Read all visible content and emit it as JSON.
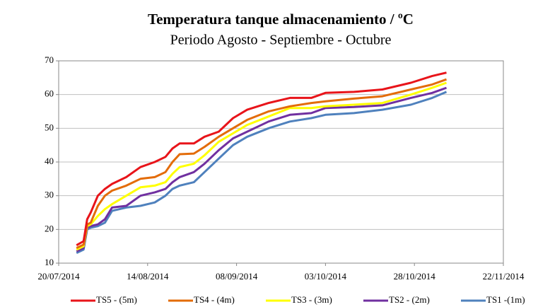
{
  "chart_data": {
    "type": "line",
    "title": "Temperatura tanque almacenamiento / ºC",
    "subtitle": "Periodo Agosto - Septiembre - Octubre",
    "x": [
      "25/07/2014",
      "27/07/2014",
      "28/07/2014",
      "29/07/2014",
      "31/07/2014",
      "02/08/2014",
      "04/08/2014",
      "08/08/2014",
      "12/08/2014",
      "16/08/2014",
      "19/08/2014",
      "21/08/2014",
      "23/08/2014",
      "27/08/2014",
      "30/08/2014",
      "03/09/2014",
      "07/09/2014",
      "11/09/2014",
      "17/09/2014",
      "23/09/2014",
      "29/09/2014",
      "03/10/2014",
      "11/10/2014",
      "19/10/2014",
      "27/10/2014",
      "02/11/2014",
      "06/11/2014"
    ],
    "series": [
      {
        "name": "TS5 - (5m)",
        "color": "#e8141a",
        "values": [
          15.3,
          16.5,
          23,
          25,
          30,
          32,
          33.5,
          35.5,
          38.5,
          40,
          41.5,
          44,
          45.5,
          45.5,
          47.5,
          49,
          53,
          55.5,
          57.5,
          59,
          59,
          60.5,
          60.8,
          61.5,
          63.5,
          65.5,
          66.5
        ]
      },
      {
        "name": "TS4 - (4m)",
        "color": "#e36c09",
        "values": [
          14.5,
          15.5,
          21.5,
          22,
          27,
          30,
          31.5,
          33,
          35,
          35.5,
          37,
          40,
          42.3,
          42.5,
          44.5,
          47.5,
          50,
          52.5,
          55,
          56.5,
          57.5,
          58,
          58.8,
          59.5,
          61.5,
          63,
          64.5
        ]
      },
      {
        "name": "TS3 - (3m)",
        "color": "#ffff00",
        "values": [
          14,
          15,
          21,
          21.5,
          24,
          26,
          27.5,
          30,
          32.5,
          33,
          34,
          36.5,
          38.5,
          39.5,
          42,
          46,
          48.5,
          51,
          53.5,
          56,
          56,
          56.5,
          57,
          57.5,
          60,
          62,
          63.5
        ]
      },
      {
        "name": "TS2 - (2m)",
        "color": "#7030a0",
        "values": [
          13.5,
          14.5,
          20.5,
          21,
          21.5,
          23,
          26.5,
          27,
          30,
          31,
          32,
          34,
          35.5,
          37,
          39.5,
          43.5,
          47,
          49,
          52,
          54,
          54.5,
          56,
          56.3,
          56.8,
          59,
          60.5,
          62
        ]
      },
      {
        "name": "TS1 -(1m)",
        "color": "#4f81bd",
        "values": [
          13,
          14,
          20,
          20.5,
          21,
          22,
          25.5,
          26.5,
          27,
          28,
          30,
          32,
          33,
          34,
          37,
          41,
          45,
          47.5,
          50,
          52,
          53,
          54,
          54.5,
          55.5,
          57,
          59,
          60.8
        ]
      }
    ],
    "xlim": [
      "20/07/2014",
      "22/11/2014"
    ],
    "xticks": [
      "20/07/2014",
      "14/08/2014",
      "08/09/2014",
      "03/10/2014",
      "28/10/2014",
      "22/11/2014"
    ],
    "ylim": [
      10,
      70
    ],
    "yticks": [
      10,
      20,
      30,
      40,
      50,
      60,
      70
    ],
    "grid": true,
    "legend": "bottom"
  }
}
